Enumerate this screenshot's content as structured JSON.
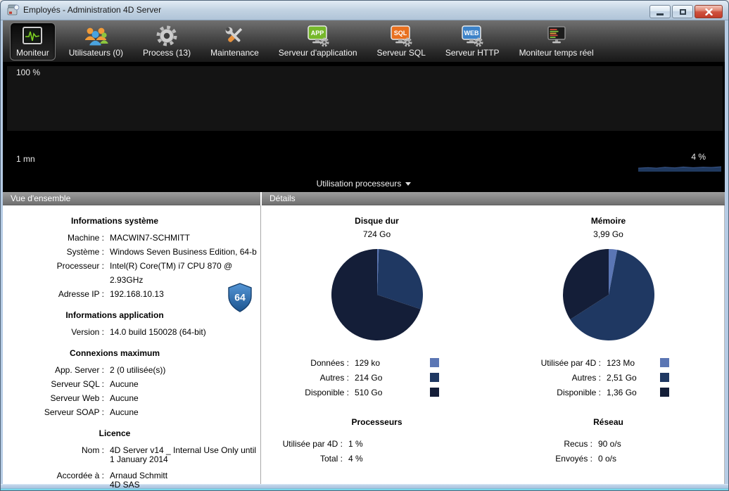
{
  "window": {
    "title": "Employés - Administration 4D Server"
  },
  "toolbar": {
    "items": [
      {
        "label": "Moniteur",
        "selected": true,
        "icon": "monitor-waveform"
      },
      {
        "label": "Utilisateurs (0)",
        "selected": false,
        "icon": "users"
      },
      {
        "label": "Process (13)",
        "selected": false,
        "icon": "gear"
      },
      {
        "label": "Maintenance",
        "selected": false,
        "icon": "tools"
      },
      {
        "label": "Serveur d'application",
        "selected": false,
        "icon": "app-server",
        "badge": "APP",
        "badge_color": "#76b82a"
      },
      {
        "label": "Serveur SQL",
        "selected": false,
        "icon": "sql-server",
        "badge": "SQL",
        "badge_color": "#e8701f"
      },
      {
        "label": "Serveur HTTP",
        "selected": false,
        "icon": "web-server",
        "badge": "WEB",
        "badge_color": "#3c82c8"
      },
      {
        "label": "Moniteur temps réel",
        "selected": false,
        "icon": "realtime-monitor"
      }
    ]
  },
  "graph": {
    "y_axis_top_label": "100 %",
    "x_axis_label": "1 mn",
    "current_value": "4 %",
    "series_selector": "Utilisation processeurs",
    "area_color": "#20395f",
    "area_line_color": "#3a578c"
  },
  "overview": {
    "header": "Vue d'ensemble",
    "system": {
      "title": "Informations système",
      "rows": [
        {
          "label": "Machine :",
          "value": "MACWIN7-SCHMITT"
        },
        {
          "label": "Système :",
          "value": "Windows Seven Business Edition, 64-b"
        },
        {
          "label": "Processeur :",
          "value": "Intel(R) Core(TM) i7 CPU 870 @ 2.93GHz"
        },
        {
          "label": "Adresse IP :",
          "value": "192.168.10.13"
        }
      ]
    },
    "application": {
      "title": "Informations application",
      "badge": "64",
      "rows": [
        {
          "label": "Version :",
          "value": "14.0 build 150028 (64-bit)"
        }
      ]
    },
    "connections": {
      "title": "Connexions maximum",
      "rows": [
        {
          "label": "App. Server :",
          "value": "2 (0 utilisée(s))"
        },
        {
          "label": "Serveur SQL :",
          "value": "Aucune"
        },
        {
          "label": "Serveur Web :",
          "value": "Aucune"
        },
        {
          "label": "Serveur SOAP :",
          "value": "Aucune"
        }
      ]
    },
    "license": {
      "title": "Licence",
      "rows": [
        {
          "label": "Nom :",
          "value": "4D Server v14 _ Internal Use Only until\n1 January 2014"
        },
        {
          "label": "Accordée à :",
          "value": "Arnaud Schmitt\n4D SAS"
        }
      ]
    }
  },
  "details": {
    "header": "Détails",
    "disk": {
      "title": "Disque dur",
      "total": "724 Go",
      "legend": [
        {
          "label": "Données :",
          "value": "129 ko",
          "color": "#5b76b4"
        },
        {
          "label": "Autres :",
          "value": "214 Go",
          "color": "#1f3862"
        },
        {
          "label": "Disponible :",
          "value": "510 Go",
          "color": "#141e38"
        }
      ]
    },
    "memory": {
      "title": "Mémoire",
      "total": "3,99 Go",
      "legend": [
        {
          "label": "Utilisée par 4D :",
          "value": "123 Mo",
          "color": "#5b76b4"
        },
        {
          "label": "Autres :",
          "value": "2,51 Go",
          "color": "#1f3862"
        },
        {
          "label": "Disponible :",
          "value": "1,36 Go",
          "color": "#141e38"
        }
      ]
    },
    "processors": {
      "title": "Processeurs",
      "rows": [
        {
          "label": "Utilisée par 4D :",
          "value": "1 %"
        },
        {
          "label": "Total :",
          "value": "4 %"
        }
      ]
    },
    "network": {
      "title": "Réseau",
      "rows": [
        {
          "label": "Recus :",
          "value": "90 o/s"
        },
        {
          "label": "Envoyés :",
          "value": "0 o/s"
        }
      ]
    }
  },
  "chart_data": [
    {
      "type": "pie",
      "title": "Disque dur",
      "total_label": "724 Go",
      "labels": [
        "Données",
        "Autres",
        "Disponible"
      ],
      "values_go": [
        0.000129,
        214,
        510
      ],
      "value_labels": [
        "129 ko",
        "214 Go",
        "510 Go"
      ],
      "colors": [
        "#5b76b4",
        "#1f3862",
        "#141e38"
      ],
      "start_angle_deg": 0,
      "direction": "clockwise",
      "min_slice_deg": 2
    },
    {
      "type": "pie",
      "title": "Mémoire",
      "total_label": "3,99 Go",
      "labels": [
        "Utilisée par 4D",
        "Autres",
        "Disponible"
      ],
      "values_go": [
        0.12,
        2.51,
        1.36
      ],
      "value_labels": [
        "123 Mo",
        "2,51 Go",
        "1,36 Go"
      ],
      "colors": [
        "#5b76b4",
        "#1f3862",
        "#141e38"
      ],
      "start_angle_deg": 0,
      "direction": "clockwise",
      "min_slice_deg": 2
    },
    {
      "type": "area",
      "title": "Utilisation processeurs",
      "x_window": "1 mn",
      "y_range_percent": [
        0,
        100
      ],
      "current_percent": 4,
      "color": "#20395f"
    }
  ]
}
